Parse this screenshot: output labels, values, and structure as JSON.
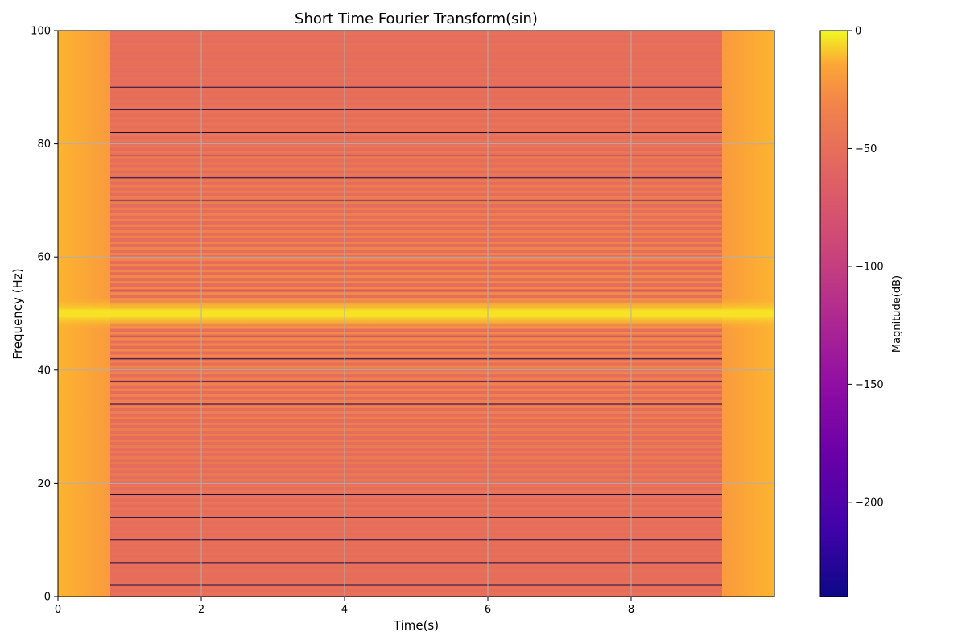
{
  "chart_data": {
    "type": "heatmap",
    "title": "Short Time Fourier Transform(sin)",
    "xlabel": "Time(s)",
    "ylabel": "Frequency (Hz)",
    "xlim": [
      0,
      10
    ],
    "ylim": [
      0,
      100
    ],
    "xticks": [
      0,
      2,
      4,
      6,
      8
    ],
    "yticks": [
      0,
      20,
      40,
      60,
      80,
      100
    ],
    "grid": true,
    "colormap": "plasma",
    "signal_frequency_hz": 50,
    "edge_transition_times_s": [
      0.73,
      9.27
    ],
    "notch_frequencies_hz": [
      2,
      6,
      10,
      14,
      18,
      34,
      38,
      42,
      46,
      54,
      70,
      74,
      78,
      82,
      86,
      90
    ],
    "colorbar": {
      "label": "Magnitude(dB)",
      "range": [
        -240,
        0
      ],
      "ticks": [
        0,
        -50,
        -100,
        -150,
        -200
      ],
      "tick_labels": [
        "0",
        "−50",
        "−100",
        "−150",
        "−200"
      ]
    },
    "colors": {
      "grid": "#b0b0b0",
      "edge_region": "#fdac33",
      "center_region": "#e66c5c",
      "peak": "#f7e225",
      "notch_line": "#1a1040"
    }
  }
}
